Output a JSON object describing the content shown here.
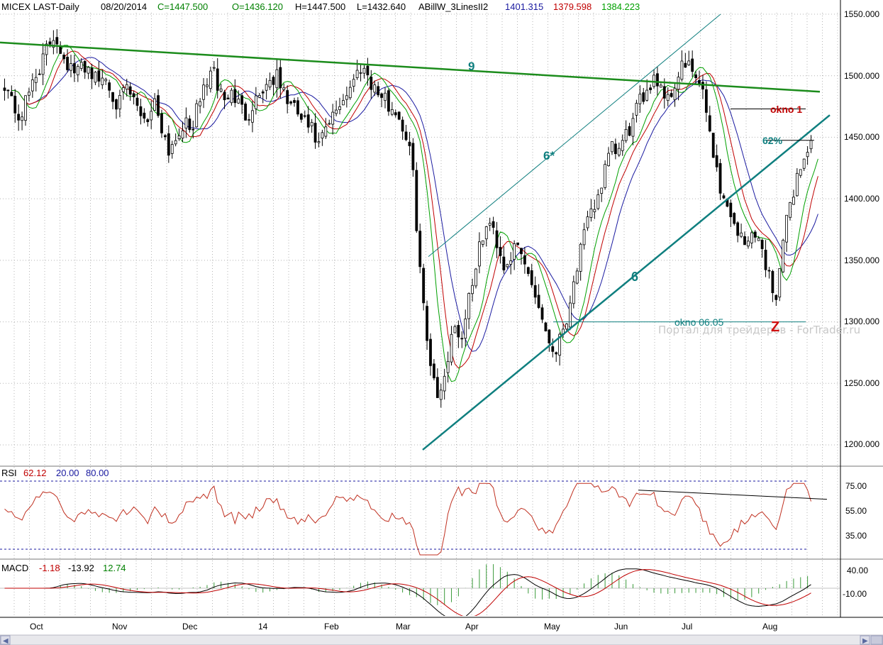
{
  "header": {
    "symbol": "MICEX LAST-Daily",
    "date": "08/20/2014",
    "close": "C=1447.500",
    "open": "O=1436.120",
    "high": "H=1447.500",
    "low": "L=1432.640",
    "indicator": "ABillW_3LinesII2",
    "ind_blue": "1401.315",
    "ind_red": "1379.598",
    "ind_green": "1384.223"
  },
  "colors": {
    "up_text": "#008000",
    "blue": "#1a1aa0",
    "red": "#c00000",
    "green": "#00a000",
    "channel": "#0f7f7f",
    "trend9": "#1c8c1c",
    "rsi_line": "#c03020",
    "grid": "#b4b4b4",
    "dashed": "#1a1aa0"
  },
  "price_axis": {
    "ticks": [
      "1550.000",
      "1500.000",
      "1450.000",
      "1400.000",
      "1350.000",
      "1300.000",
      "1250.000",
      "1200.000"
    ]
  },
  "rsi_panel": {
    "label": "RSI",
    "value": "62.12",
    "low_level": "20.00",
    "high_level": "80.00",
    "ticks": [
      "75.00",
      "55.00",
      "35.00"
    ]
  },
  "macd_panel": {
    "label": "MACD",
    "v1": "-1.18",
    "v2": "-13.92",
    "v3": "12.74",
    "ticks": [
      "40.00",
      "-10.00"
    ]
  },
  "annotations": {
    "wave_9": "9",
    "wave_6star": "6*",
    "wave_6": "6",
    "okno_1": "okno 1",
    "okno_0605": "okno 06.05",
    "fib_62": "62%",
    "z_label": "Z"
  },
  "watermark": "Портал для трейдеров - ForTrader.ru",
  "chart_data": {
    "type": "candlestick",
    "title": "MICEX LAST-Daily",
    "ylim": [
      1180,
      1560
    ],
    "months": [
      "Oct",
      "Nov",
      "Dec",
      "14",
      "Feb",
      "Mar",
      "Apr",
      "May",
      "Jun",
      "Jul",
      "Aug"
    ],
    "anchor_prices": [
      1495,
      1480,
      1465,
      1478,
      1498,
      1508,
      1522,
      1534,
      1520,
      1508,
      1500,
      1510,
      1505,
      1495,
      1500,
      1488,
      1475,
      1490,
      1480,
      1470,
      1465,
      1480,
      1460,
      1440,
      1450,
      1462,
      1455,
      1472,
      1492,
      1505,
      1490,
      1480,
      1486,
      1474,
      1468,
      1480,
      1488,
      1495,
      1500,
      1488,
      1476,
      1470,
      1462,
      1456,
      1442,
      1455,
      1466,
      1478,
      1487,
      1497,
      1510,
      1500,
      1488,
      1482,
      1475,
      1470,
      1455,
      1435,
      1360,
      1290,
      1260,
      1235,
      1270,
      1300,
      1285,
      1320,
      1345,
      1370,
      1380,
      1365,
      1345,
      1355,
      1360,
      1345,
      1330,
      1310,
      1290,
      1275,
      1290,
      1310,
      1340,
      1365,
      1385,
      1400,
      1420,
      1440,
      1438,
      1450,
      1462,
      1478,
      1490,
      1500,
      1492,
      1480,
      1495,
      1510,
      1505,
      1498,
      1480,
      1450,
      1415,
      1395,
      1385,
      1370,
      1360,
      1378,
      1360,
      1340,
      1320,
      1360,
      1395,
      1418,
      1432,
      1447
    ],
    "series": [
      {
        "name": "ABillW_3LinesII2 blue",
        "last": 1401.315
      },
      {
        "name": "ABillW_3LinesII2 red",
        "last": 1379.598
      },
      {
        "name": "ABillW_3LinesII2 green",
        "last": 1384.223
      }
    ],
    "trend_line_9": [
      [
        0,
        1527
      ],
      [
        1156,
        1487
      ]
    ],
    "channel_6_lower": [
      [
        596,
        1196
      ],
      [
        1170,
        1468
      ]
    ],
    "channel_6_upper": [
      [
        604,
        1353
      ],
      [
        1016,
        1550
      ]
    ],
    "rsi": {
      "last": 62.12,
      "levels": [
        20,
        80
      ],
      "ylim": [
        10,
        90
      ]
    },
    "macd": {
      "values": [
        -1.18,
        -13.92,
        12.74
      ]
    }
  }
}
